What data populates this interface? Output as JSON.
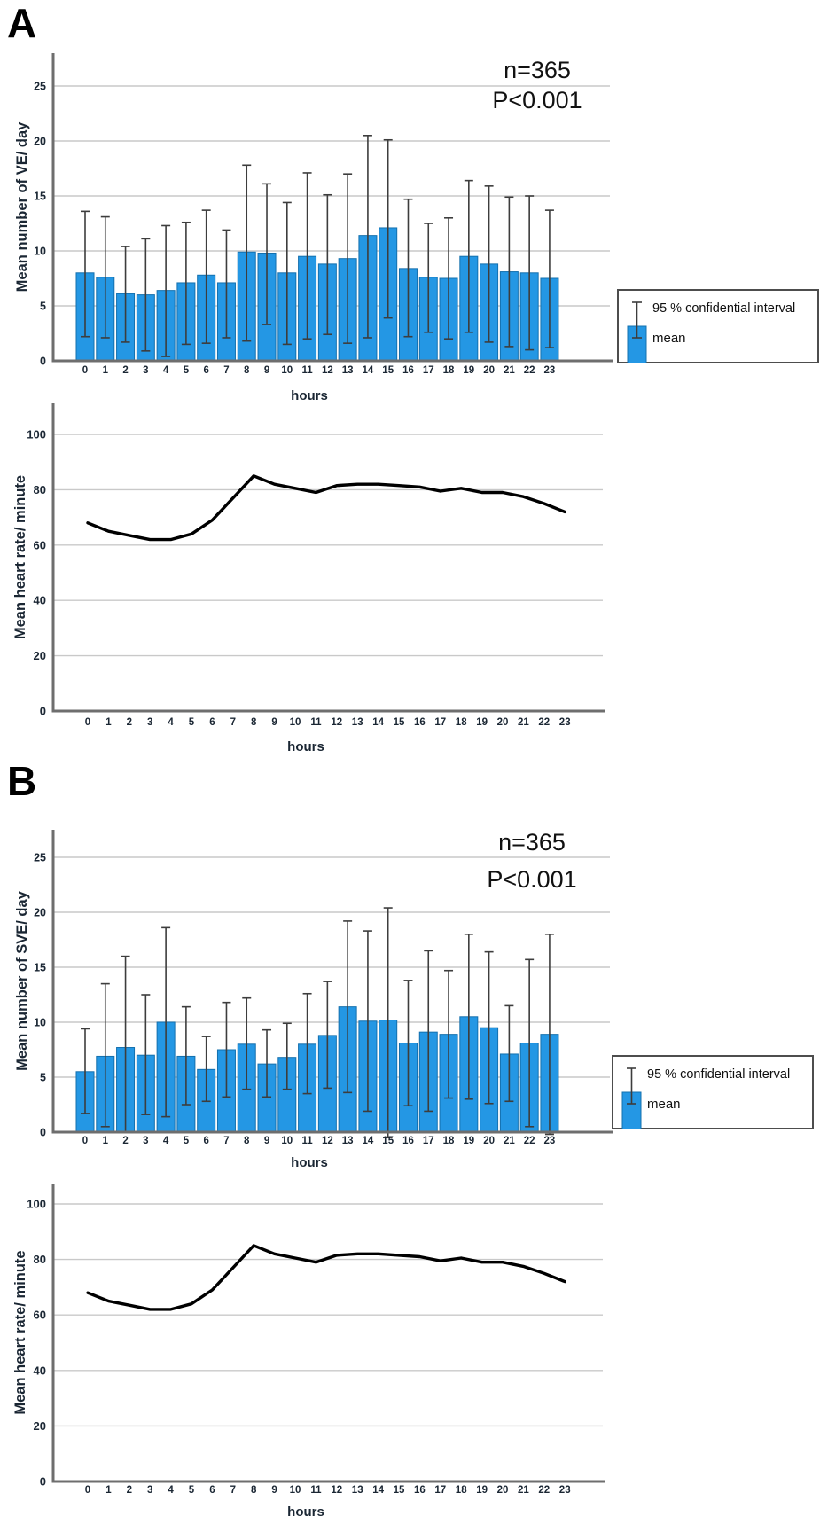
{
  "figure": {
    "panels": [
      {
        "label": "A",
        "annotations": {
          "n": "n=365",
          "p": "P<0.001"
        },
        "legend": {
          "ci_label": "95 % confidential interval",
          "mean_label": "mean"
        }
      },
      {
        "label": "B",
        "annotations": {
          "n": "n=365",
          "p": "P<0.001"
        },
        "legend": {
          "ci_label": "95 % confidential interval",
          "mean_label": "mean"
        }
      }
    ]
  },
  "colors": {
    "bar_fill": "#2497e4",
    "bar_stroke": "#1470ae",
    "error_bar": "#3d3d3d",
    "gridline": "#c9c9c9",
    "axis": "#6e6e6e",
    "line": "#000000",
    "text": "#1a2633",
    "annotation": "#111111",
    "legend_border": "#4d4d4d"
  },
  "chart_data": [
    {
      "id": "panel-a-bars",
      "type": "bar",
      "title": "",
      "xlabel": "hours",
      "ylabel": "Mean number of VE/ day",
      "categories": [
        "0",
        "1",
        "2",
        "3",
        "4",
        "5",
        "6",
        "7",
        "8",
        "9",
        "10",
        "11",
        "12",
        "13",
        "14",
        "15",
        "16",
        "17",
        "18",
        "19",
        "20",
        "21",
        "22",
        "23"
      ],
      "values": [
        8.0,
        7.6,
        6.1,
        6.0,
        6.4,
        7.1,
        7.8,
        7.1,
        9.9,
        9.8,
        8.0,
        9.5,
        8.8,
        9.3,
        11.4,
        12.1,
        8.4,
        7.6,
        7.5,
        9.5,
        8.8,
        8.1,
        8.0,
        7.5
      ],
      "ci_high": [
        13.6,
        13.1,
        10.4,
        11.1,
        12.3,
        12.6,
        13.7,
        11.9,
        17.8,
        16.1,
        14.4,
        17.1,
        15.1,
        17.0,
        20.5,
        20.1,
        14.7,
        12.5,
        13.0,
        16.4,
        15.9,
        14.9,
        15.0,
        13.7
      ],
      "ci_low": [
        2.2,
        2.1,
        1.7,
        0.9,
        0.4,
        1.5,
        1.6,
        2.1,
        1.8,
        3.3,
        1.5,
        2.0,
        2.4,
        1.6,
        2.1,
        3.9,
        2.2,
        2.6,
        2.0,
        2.6,
        1.7,
        1.3,
        1.0,
        1.2
      ],
      "yticks": [
        0,
        5,
        10,
        15,
        20,
        25
      ],
      "ylim": [
        0,
        28
      ],
      "grid": true,
      "legend_position": "right",
      "legend_entries": [
        "95 % confidential interval",
        "mean"
      ],
      "annotations": [
        "n=365",
        "P<0.001"
      ]
    },
    {
      "id": "panel-a-line",
      "type": "line",
      "title": "",
      "xlabel": "hours",
      "ylabel": "Mean heart rate/ minute",
      "categories": [
        "0",
        "1",
        "2",
        "3",
        "4",
        "5",
        "6",
        "7",
        "8",
        "9",
        "10",
        "11",
        "12",
        "13",
        "14",
        "15",
        "16",
        "17",
        "18",
        "19",
        "20",
        "21",
        "22",
        "23"
      ],
      "values": [
        68,
        65,
        63.5,
        62,
        62,
        64,
        69,
        77,
        85,
        82,
        80.5,
        79,
        81.5,
        82,
        82,
        81.5,
        81,
        79.5,
        80.5,
        79,
        79,
        77.5,
        75,
        72
      ],
      "yticks": [
        0,
        20,
        40,
        60,
        80,
        100
      ],
      "ylim": [
        0,
        111
      ],
      "grid": true,
      "legend_position": "none",
      "annotations": []
    },
    {
      "id": "panel-b-bars",
      "type": "bar",
      "title": "",
      "xlabel": "hours",
      "ylabel": "Mean number of SVE/ day",
      "categories": [
        "0",
        "1",
        "2",
        "3",
        "4",
        "5",
        "6",
        "7",
        "8",
        "9",
        "10",
        "11",
        "12",
        "13",
        "14",
        "15",
        "16",
        "17",
        "18",
        "19",
        "20",
        "21",
        "22",
        "23"
      ],
      "values": [
        5.5,
        6.9,
        7.7,
        7.0,
        10.0,
        6.9,
        5.7,
        7.5,
        8.0,
        6.2,
        6.8,
        8.0,
        8.8,
        11.4,
        10.1,
        10.2,
        8.1,
        9.1,
        8.9,
        10.5,
        9.5,
        7.1,
        8.1,
        8.9
      ],
      "ci_high": [
        9.4,
        13.5,
        16.0,
        12.5,
        18.6,
        11.4,
        8.7,
        11.8,
        12.2,
        9.3,
        9.9,
        12.6,
        13.7,
        19.2,
        18.3,
        20.4,
        13.8,
        16.5,
        14.7,
        18.0,
        16.4,
        11.5,
        15.7,
        18.0
      ],
      "ci_low": [
        1.7,
        0.5,
        0.0,
        1.6,
        1.4,
        2.5,
        2.8,
        3.2,
        3.9,
        3.2,
        3.9,
        3.5,
        4.0,
        3.6,
        1.9,
        -0.5,
        2.4,
        1.9,
        3.1,
        3.0,
        2.6,
        2.8,
        0.5,
        -0.2
      ],
      "yticks": [
        0,
        5,
        10,
        15,
        20,
        25
      ],
      "ylim": [
        0,
        27.5
      ],
      "grid": true,
      "legend_position": "right",
      "legend_entries": [
        "95 % confidential interval",
        "mean"
      ],
      "annotations": [
        "n=365",
        "P<0.001"
      ]
    },
    {
      "id": "panel-b-line",
      "type": "line",
      "title": "",
      "xlabel": "hours",
      "ylabel": "Mean heart rate/ minute",
      "categories": [
        "0",
        "1",
        "2",
        "3",
        "4",
        "5",
        "6",
        "7",
        "8",
        "9",
        "10",
        "11",
        "12",
        "13",
        "14",
        "15",
        "16",
        "17",
        "18",
        "19",
        "20",
        "21",
        "22",
        "23"
      ],
      "values": [
        68,
        65,
        63.5,
        62,
        62,
        64,
        69,
        77,
        85,
        82,
        80.5,
        79,
        81.5,
        82,
        82,
        81.5,
        81,
        79.5,
        80.5,
        79,
        79,
        77.5,
        75,
        72
      ],
      "yticks": [
        0,
        20,
        40,
        60,
        80,
        100
      ],
      "ylim": [
        0,
        111
      ],
      "grid": true,
      "legend_position": "none",
      "annotations": []
    }
  ]
}
